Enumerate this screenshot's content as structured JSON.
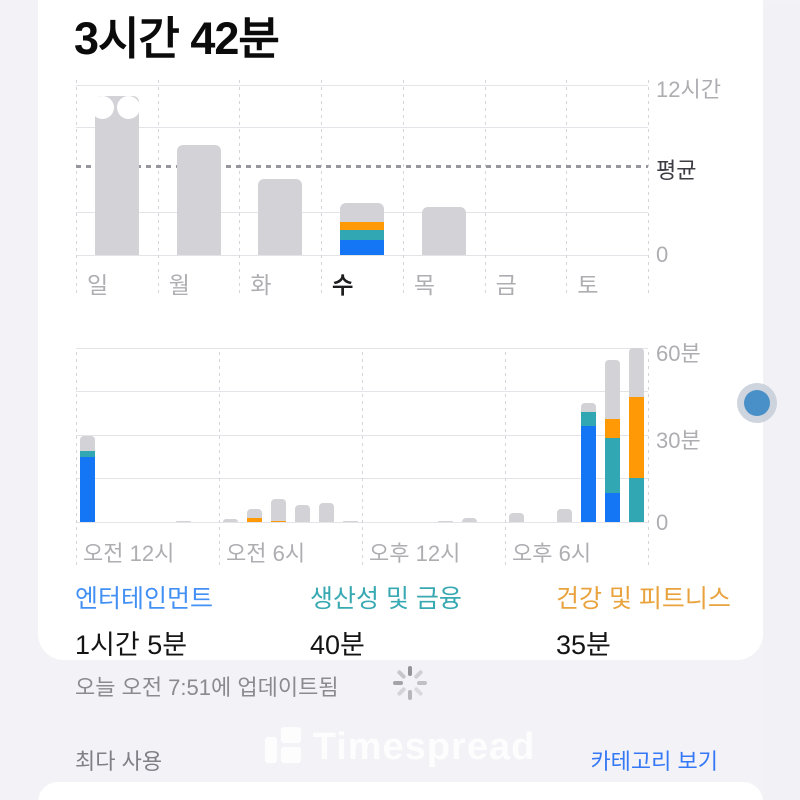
{
  "title": "3시간 42분",
  "colors": {
    "blue": "#1476F5",
    "teal": "#30A7B3",
    "orange": "#FF9905",
    "bar_gray": "#D2D2D7",
    "legend_blue_text": "#4390F5",
    "legend_teal_text": "#38A9B2",
    "legend_orange_text": "#E9A33E",
    "link_blue": "#3478F6",
    "background": "#F2F2F7",
    "card": "#FFFFFF",
    "axis_text": "#AEAEB2",
    "selected_day_text": "#1C1C1E",
    "avg_label_text": "#3C3C43",
    "muted_text": "#8A8A8F",
    "gridline": "#E3E3E8",
    "dot_blue": "#4A90C8"
  },
  "chart_data": [
    {
      "id": "weekly_chart",
      "type": "bar",
      "unit": "hours",
      "ylim": [
        0,
        12
      ],
      "y_axis_labels": {
        "top": "12시간",
        "average": "평균",
        "zero": "0"
      },
      "average_line_hours": 6.25,
      "gridline_hours": [
        0,
        3,
        9,
        12
      ],
      "days": [
        "일",
        "월",
        "화",
        "수",
        "목",
        "금",
        "토"
      ],
      "selected_day": "수",
      "bars": [
        {
          "day": "일",
          "gray": 11.2
        },
        {
          "day": "월",
          "gray": 7.8
        },
        {
          "day": "화",
          "gray": 5.4
        },
        {
          "day": "수",
          "blue": 1.08,
          "teal": 0.67,
          "orange": 0.58,
          "gray": 1.37
        },
        {
          "day": "목",
          "gray": 3.4
        },
        {
          "day": "금"
        },
        {
          "day": "토"
        }
      ]
    },
    {
      "id": "hourly_chart",
      "type": "stacked-bar",
      "unit": "minutes",
      "ylim": [
        0,
        60
      ],
      "y_axis_labels": {
        "top": "60분",
        "middle": "30분",
        "zero": "0"
      },
      "gridline_minutes": [
        0,
        15,
        30,
        45,
        60
      ],
      "x_labels": [
        "오전 12시",
        "오전 6시",
        "오후 12시",
        "오후 6시"
      ],
      "slots": 24,
      "bars": [
        {
          "hour": 0,
          "blue": 22.5,
          "teal": 2,
          "gray": 5
        },
        {
          "hour": 4,
          "gray": 0.5
        },
        {
          "hour": 6,
          "gray": 1
        },
        {
          "hour": 7,
          "orange": 1.5,
          "gray": 3
        },
        {
          "hour": 8,
          "orange": 0.5,
          "gray": 7.5
        },
        {
          "hour": 9,
          "gray": 6
        },
        {
          "hour": 10,
          "gray": 6.5
        },
        {
          "hour": 11,
          "gray": 0.5
        },
        {
          "hour": 15,
          "gray": 0.5
        },
        {
          "hour": 16,
          "gray": 1.5
        },
        {
          "hour": 18,
          "gray": 3
        },
        {
          "hour": 20,
          "gray": 4.5
        },
        {
          "hour": 21,
          "blue": 33,
          "teal": 5,
          "gray": 3
        },
        {
          "hour": 22,
          "blue": 10,
          "teal": 19,
          "orange": 6.5,
          "gray": 20.5
        },
        {
          "hour": 23,
          "teal": 15,
          "orange": 28,
          "gray": 17
        }
      ]
    }
  ],
  "legend": [
    {
      "label": "엔터테인먼트",
      "value": "1시간 5분",
      "color_key": "legend_blue_text"
    },
    {
      "label": "생산성 및 금융",
      "value": "40분",
      "color_key": "legend_teal_text"
    },
    {
      "label": "건강 및 피트니스",
      "value": "35분",
      "color_key": "legend_orange_text"
    }
  ],
  "footer": {
    "updated_text": "오늘 오전 7:51에 업데이트됨",
    "section_label": "최다 사용",
    "section_action": "카테고리 보기"
  },
  "watermark": {
    "text": "Timespread"
  }
}
